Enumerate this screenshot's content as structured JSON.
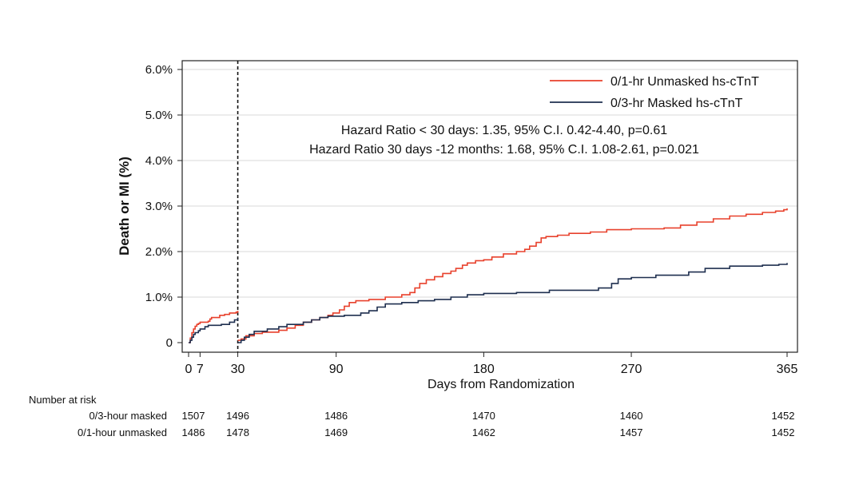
{
  "chart_data": {
    "type": "line",
    "title": "",
    "xlabel": "Days from Randomization",
    "ylabel": "Death or MI (%)",
    "xlim": [
      0,
      365
    ],
    "ylim": [
      0,
      6.0
    ],
    "x_ticks": [
      {
        "value": 0,
        "label": "0"
      },
      {
        "value": 7,
        "label": "7"
      },
      {
        "value": 30,
        "label": "30"
      },
      {
        "value": 90,
        "label": "90"
      },
      {
        "value": 180,
        "label": "180"
      },
      {
        "value": 270,
        "label": "270"
      },
      {
        "value": 365,
        "label": "365"
      }
    ],
    "y_ticks": [
      {
        "value": 0,
        "label": "0"
      },
      {
        "value": 1.0,
        "label": "1.0%"
      },
      {
        "value": 2.0,
        "label": "2.0%"
      },
      {
        "value": 3.0,
        "label": "3.0%"
      },
      {
        "value": 4.0,
        "label": "4.0%"
      },
      {
        "value": 5.0,
        "label": "5.0%"
      },
      {
        "value": 6.0,
        "label": "6.0%"
      }
    ],
    "grid": "horizontal",
    "landmark_x": 30,
    "legend_position": "top-right",
    "series": [
      {
        "name": "0/1-hr Unmasked hs-cTnT",
        "color": "#e8412c",
        "segments": [
          [
            [
              0,
              0
            ],
            [
              1,
              0.1
            ],
            [
              2,
              0.22
            ],
            [
              3,
              0.3
            ],
            [
              4,
              0.36
            ],
            [
              5,
              0.4
            ],
            [
              6,
              0.42
            ],
            [
              7,
              0.45
            ],
            [
              12,
              0.47
            ],
            [
              13,
              0.52
            ],
            [
              14,
              0.55
            ],
            [
              19,
              0.6
            ],
            [
              22,
              0.62
            ],
            [
              25,
              0.65
            ],
            [
              29,
              0.67
            ],
            [
              30,
              0.7
            ]
          ],
          [
            [
              30,
              0.05
            ],
            [
              32,
              0.08
            ],
            [
              35,
              0.15
            ],
            [
              40,
              0.2
            ],
            [
              45,
              0.23
            ],
            [
              55,
              0.27
            ],
            [
              60,
              0.32
            ],
            [
              65,
              0.38
            ],
            [
              70,
              0.45
            ],
            [
              75,
              0.5
            ],
            [
              80,
              0.55
            ],
            [
              85,
              0.6
            ],
            [
              88,
              0.65
            ],
            [
              92,
              0.72
            ],
            [
              95,
              0.8
            ],
            [
              98,
              0.88
            ],
            [
              102,
              0.92
            ],
            [
              110,
              0.95
            ],
            [
              120,
              1.0
            ],
            [
              130,
              1.05
            ],
            [
              135,
              1.1
            ],
            [
              138,
              1.2
            ],
            [
              141,
              1.3
            ],
            [
              145,
              1.38
            ],
            [
              150,
              1.45
            ],
            [
              155,
              1.52
            ],
            [
              160,
              1.57
            ],
            [
              163,
              1.63
            ],
            [
              167,
              1.7
            ],
            [
              170,
              1.75
            ],
            [
              175,
              1.8
            ],
            [
              180,
              1.82
            ],
            [
              185,
              1.88
            ],
            [
              192,
              1.95
            ],
            [
              200,
              2.0
            ],
            [
              205,
              2.05
            ],
            [
              208,
              2.12
            ],
            [
              212,
              2.2
            ],
            [
              215,
              2.3
            ],
            [
              218,
              2.33
            ],
            [
              225,
              2.36
            ],
            [
              232,
              2.4
            ],
            [
              245,
              2.43
            ],
            [
              255,
              2.48
            ],
            [
              270,
              2.5
            ],
            [
              290,
              2.52
            ],
            [
              300,
              2.58
            ],
            [
              310,
              2.65
            ],
            [
              320,
              2.72
            ],
            [
              330,
              2.78
            ],
            [
              340,
              2.82
            ],
            [
              350,
              2.86
            ],
            [
              358,
              2.89
            ],
            [
              363,
              2.92
            ],
            [
              365,
              2.95
            ]
          ]
        ]
      },
      {
        "name": "0/3-hr Masked hs-cTnT",
        "color": "#1e2f4f",
        "segments": [
          [
            [
              0,
              0
            ],
            [
              1,
              0.05
            ],
            [
              2,
              0.12
            ],
            [
              3,
              0.18
            ],
            [
              4,
              0.22
            ],
            [
              6,
              0.26
            ],
            [
              7,
              0.3
            ],
            [
              10,
              0.35
            ],
            [
              12,
              0.38
            ],
            [
              20,
              0.4
            ],
            [
              25,
              0.45
            ],
            [
              28,
              0.5
            ],
            [
              30,
              0.55
            ]
          ],
          [
            [
              30,
              0.0
            ],
            [
              32,
              0.05
            ],
            [
              34,
              0.12
            ],
            [
              37,
              0.18
            ],
            [
              40,
              0.25
            ],
            [
              48,
              0.3
            ],
            [
              55,
              0.35
            ],
            [
              60,
              0.4
            ],
            [
              70,
              0.45
            ],
            [
              75,
              0.5
            ],
            [
              80,
              0.55
            ],
            [
              85,
              0.58
            ],
            [
              95,
              0.6
            ],
            [
              105,
              0.65
            ],
            [
              110,
              0.7
            ],
            [
              115,
              0.78
            ],
            [
              120,
              0.85
            ],
            [
              130,
              0.88
            ],
            [
              140,
              0.92
            ],
            [
              150,
              0.95
            ],
            [
              160,
              1.0
            ],
            [
              170,
              1.05
            ],
            [
              180,
              1.08
            ],
            [
              200,
              1.1
            ],
            [
              220,
              1.15
            ],
            [
              250,
              1.2
            ],
            [
              258,
              1.3
            ],
            [
              262,
              1.4
            ],
            [
              270,
              1.43
            ],
            [
              285,
              1.48
            ],
            [
              305,
              1.55
            ],
            [
              315,
              1.63
            ],
            [
              330,
              1.68
            ],
            [
              350,
              1.7
            ],
            [
              360,
              1.72
            ],
            [
              365,
              1.75
            ]
          ]
        ]
      }
    ],
    "annotations": [
      "Hazard Ratio < 30 days: 1.35, 95% C.I. 0.42-4.40, p=0.61",
      "Hazard Ratio 30 days -12 months: 1.68, 95% C.I. 1.08-2.61, p=0.021"
    ]
  },
  "risk_table": {
    "title": "Number at risk",
    "days": [
      0,
      30,
      90,
      180,
      270,
      365
    ],
    "rows": [
      {
        "label": "0/3-hour masked",
        "values": [
          "1507",
          "1496",
          "1486",
          "1470",
          "1460",
          "1452"
        ]
      },
      {
        "label": "0/1-hour unmasked",
        "values": [
          "1486",
          "1478",
          "1469",
          "1462",
          "1457",
          "1452"
        ]
      }
    ]
  }
}
